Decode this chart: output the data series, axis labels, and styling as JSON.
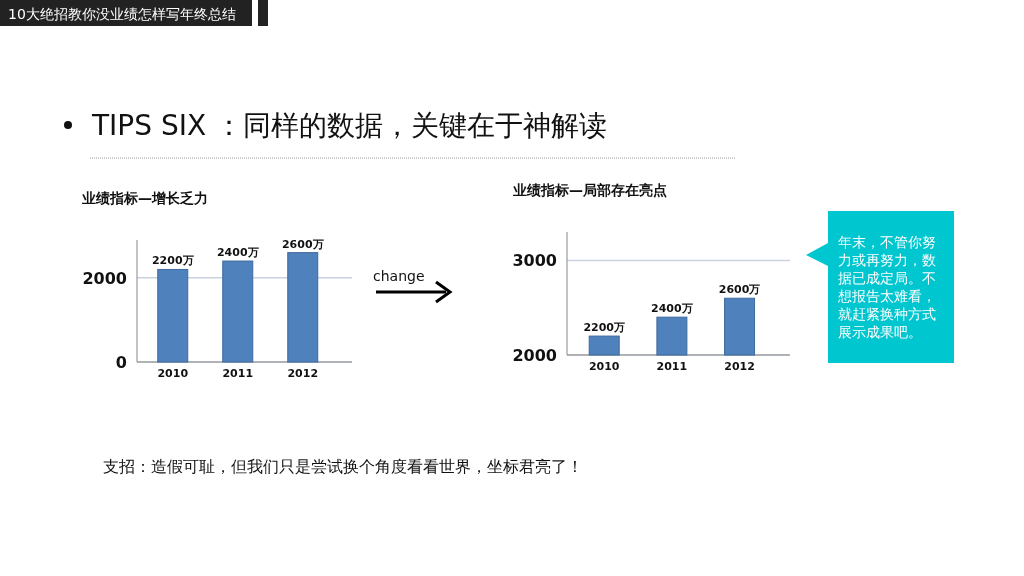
{
  "chart_data": [
    {
      "type": "bar",
      "title": "业绩指标—增长乏力",
      "categories": [
        "2010",
        "2011",
        "2012"
      ],
      "values": [
        2200,
        2400,
        2600
      ],
      "value_labels": [
        "2200万",
        "2400万",
        "2600万"
      ],
      "color": "#4f81bd",
      "ylim": [
        0,
        2900
      ],
      "yticks": [
        0,
        2000
      ],
      "grid": "y",
      "annotations": [
        "10大绝招教你没业绩怎样写年终总结",
        "TIPS SIX ：同样的数据，关键在于神解读",
        "change",
        "支招：造假可耻，但我们只是尝试换个角度看看世界，坐标君亮了！"
      ]
    },
    {
      "type": "bar",
      "title": "业绩指标—局部存在亮点",
      "categories": [
        "2010",
        "2011",
        "2012"
      ],
      "values": [
        2200,
        2400,
        2600
      ],
      "value_labels": [
        "2200万",
        "2400万",
        "2600万"
      ],
      "color": "#4f81bd",
      "ylim": [
        2000,
        3300
      ],
      "yticks": [
        2000,
        3000
      ],
      "grid": "y"
    },
    {
      "type": "other",
      "annotations": [
        "年末，不管你努力或再努力，数据已成定局。不想报告太难看，就赶紧换种方式展示成果吧。"
      ]
    }
  ]
}
